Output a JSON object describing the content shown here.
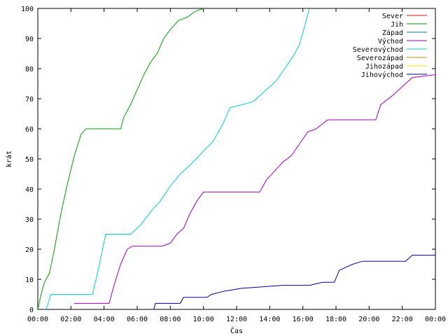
{
  "chart_data": {
    "type": "line",
    "title": "",
    "xlabel": "Čas",
    "ylabel": "krát",
    "xlim_hours": [
      0,
      24
    ],
    "ylim": [
      0,
      100
    ],
    "grid": false,
    "legend_position": "top-right",
    "x_tick_labels": [
      "00:00",
      "02:00",
      "04:00",
      "06:00",
      "08:00",
      "10:00",
      "12:00",
      "14:00",
      "16:00",
      "18:00",
      "20:00",
      "22:00",
      "00:00"
    ],
    "y_tick_labels": [
      "0",
      "10",
      "20",
      "30",
      "40",
      "50",
      "60",
      "70",
      "80",
      "90",
      "100"
    ],
    "series": [
      {
        "name": "Sever",
        "color": "#ff0000",
        "points": []
      },
      {
        "name": "Jih",
        "color": "#00a000",
        "points": [
          [
            0.0,
            0
          ],
          [
            0.2,
            5
          ],
          [
            0.4,
            9
          ],
          [
            0.7,
            12
          ],
          [
            1.0,
            20
          ],
          [
            1.4,
            32
          ],
          [
            1.8,
            42
          ],
          [
            2.2,
            51
          ],
          [
            2.6,
            58
          ],
          [
            2.9,
            60
          ],
          [
            5.0,
            60
          ],
          [
            5.2,
            64
          ],
          [
            5.6,
            68
          ],
          [
            6.0,
            73
          ],
          [
            6.4,
            78
          ],
          [
            6.8,
            82
          ],
          [
            7.2,
            85
          ],
          [
            7.6,
            90
          ],
          [
            8.0,
            93
          ],
          [
            8.5,
            96
          ],
          [
            9.0,
            97
          ],
          [
            9.5,
            99
          ],
          [
            10.0,
            100
          ]
        ]
      },
      {
        "name": "Západ",
        "color": "#0080a0",
        "points": []
      },
      {
        "name": "Východ",
        "color": "#a000c0",
        "points": [
          [
            2.2,
            2
          ],
          [
            4.3,
            2
          ],
          [
            4.6,
            8
          ],
          [
            5.0,
            15
          ],
          [
            5.4,
            20
          ],
          [
            5.7,
            21
          ],
          [
            7.5,
            21
          ],
          [
            8.0,
            22
          ],
          [
            8.4,
            25
          ],
          [
            8.8,
            27
          ],
          [
            9.2,
            32
          ],
          [
            9.6,
            36
          ],
          [
            10.0,
            39
          ],
          [
            13.4,
            39
          ],
          [
            13.8,
            43
          ],
          [
            14.3,
            46
          ],
          [
            14.8,
            49
          ],
          [
            15.3,
            51
          ],
          [
            15.8,
            55
          ],
          [
            16.3,
            59
          ],
          [
            16.8,
            60
          ],
          [
            17.5,
            63
          ],
          [
            20.4,
            63
          ],
          [
            20.7,
            68
          ],
          [
            21.4,
            71
          ],
          [
            22.0,
            74
          ],
          [
            22.6,
            77
          ],
          [
            24.0,
            78
          ]
        ]
      },
      {
        "name": "Severovýchod",
        "color": "#00d0d0",
        "points": [
          [
            0.5,
            0
          ],
          [
            0.8,
            5
          ],
          [
            3.3,
            5
          ],
          [
            3.6,
            12
          ],
          [
            4.1,
            25
          ],
          [
            5.6,
            25
          ],
          [
            6.2,
            28
          ],
          [
            6.9,
            33
          ],
          [
            7.4,
            36
          ],
          [
            8.0,
            41
          ],
          [
            8.6,
            45
          ],
          [
            9.2,
            48
          ],
          [
            9.9,
            52
          ],
          [
            10.6,
            56
          ],
          [
            11.2,
            62
          ],
          [
            11.6,
            67
          ],
          [
            12.3,
            68
          ],
          [
            13.0,
            69
          ],
          [
            13.8,
            73
          ],
          [
            14.4,
            76
          ],
          [
            14.9,
            80
          ],
          [
            15.4,
            84
          ],
          [
            15.8,
            88
          ],
          [
            16.1,
            94
          ],
          [
            16.4,
            100
          ]
        ]
      },
      {
        "name": "Severozápad",
        "color": "#c09000",
        "points": []
      },
      {
        "name": "Jihozápad",
        "color": "#ffe000",
        "points": []
      },
      {
        "name": "Jihovýchod",
        "color": "#0000a0",
        "points": [
          [
            7.0,
            0
          ],
          [
            7.1,
            2
          ],
          [
            8.6,
            2
          ],
          [
            8.8,
            4
          ],
          [
            10.2,
            4
          ],
          [
            10.5,
            5
          ],
          [
            11.2,
            6
          ],
          [
            12.3,
            7
          ],
          [
            14.8,
            8
          ],
          [
            16.4,
            8
          ],
          [
            17.2,
            9
          ],
          [
            17.9,
            9
          ],
          [
            18.2,
            13
          ],
          [
            19.0,
            15
          ],
          [
            19.6,
            16
          ],
          [
            22.2,
            16
          ],
          [
            22.6,
            18
          ],
          [
            24.0,
            18
          ]
        ]
      }
    ]
  }
}
